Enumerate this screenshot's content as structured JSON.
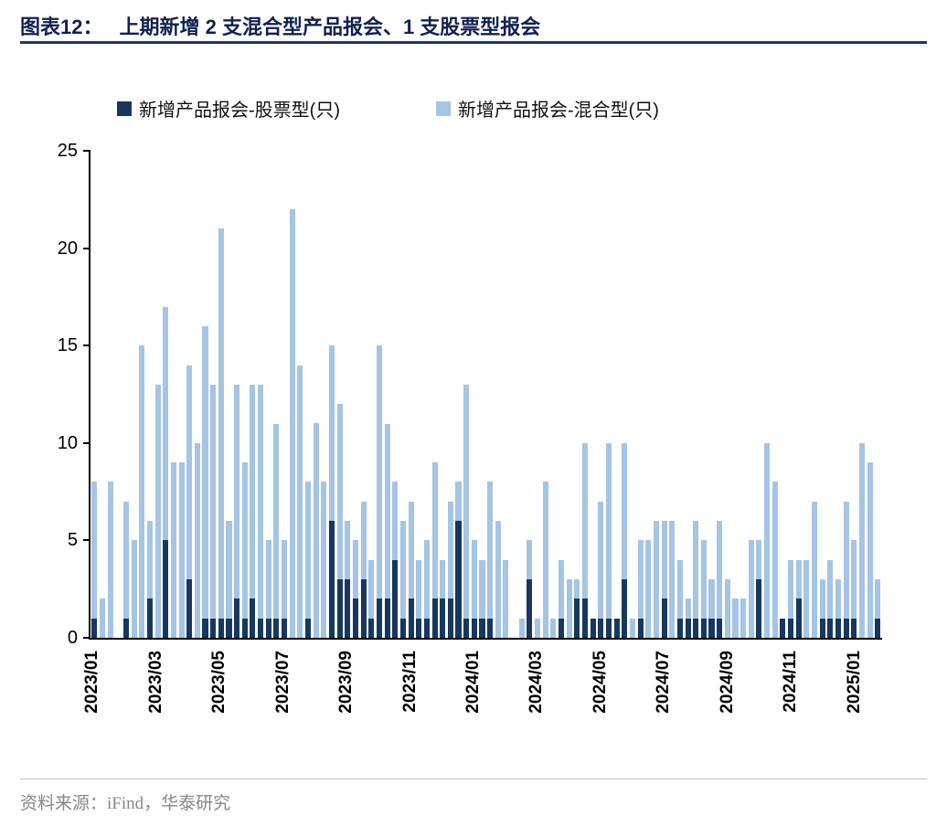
{
  "page": {
    "title_label": "图表12：",
    "title_text": "上期新增 2 支混合型产品报会、1 支股票型报会",
    "source": "资料来源：iFind，华泰研究"
  },
  "colors": {
    "equity": "#17375e",
    "hybrid": "#a6c4e4",
    "title_line": "#1f3864",
    "axis": "#000000",
    "source_text": "#85878a"
  },
  "legend": [
    {
      "label": "新增产品报会-股票型(只)",
      "color": "#17375e"
    },
    {
      "label": "新增产品报会-混合型(只)",
      "color": "#a6c4e4"
    }
  ],
  "chart_data": {
    "type": "bar",
    "stacked": true,
    "title": "上期新增 2 支混合型产品报会、1 支股票型报会",
    "xlabel": "",
    "ylabel": "",
    "ylim": [
      0,
      25
    ],
    "yticks": [
      0,
      5,
      10,
      15,
      20,
      25
    ],
    "grid": false,
    "legend_position": "top",
    "series_names": [
      "新增产品报会-股票型(只)",
      "新增产品报会-混合型(只)"
    ],
    "bar_value_order": [
      "equity",
      "hybrid"
    ],
    "xticks": [
      {
        "label": "2023/01",
        "index": 0
      },
      {
        "label": "2023/03",
        "index": 8
      },
      {
        "label": "2023/05",
        "index": 16
      },
      {
        "label": "2023/07",
        "index": 24
      },
      {
        "label": "2023/09",
        "index": 32
      },
      {
        "label": "2023/11",
        "index": 40
      },
      {
        "label": "2024/01",
        "index": 48
      },
      {
        "label": "2024/03",
        "index": 56
      },
      {
        "label": "2024/05",
        "index": 64
      },
      {
        "label": "2024/07",
        "index": 72
      },
      {
        "label": "2024/09",
        "index": 80
      },
      {
        "label": "2024/11",
        "index": 88
      },
      {
        "label": "2025/01",
        "index": 96
      }
    ],
    "bars": [
      [
        1,
        7
      ],
      [
        0,
        2
      ],
      [
        0,
        8
      ],
      [
        0,
        0
      ],
      [
        1,
        6
      ],
      [
        0,
        5
      ],
      [
        0,
        15
      ],
      [
        2,
        4
      ],
      [
        0,
        13
      ],
      [
        5,
        12
      ],
      [
        0,
        9
      ],
      [
        0,
        9
      ],
      [
        3,
        11
      ],
      [
        0,
        10
      ],
      [
        1,
        15
      ],
      [
        1,
        12
      ],
      [
        1,
        20
      ],
      [
        1,
        5
      ],
      [
        2,
        11
      ],
      [
        1,
        8
      ],
      [
        2,
        11
      ],
      [
        1,
        12
      ],
      [
        1,
        4
      ],
      [
        1,
        10
      ],
      [
        1,
        4
      ],
      [
        0,
        22
      ],
      [
        0,
        14
      ],
      [
        1,
        7
      ],
      [
        0,
        11
      ],
      [
        0,
        8
      ],
      [
        6,
        9
      ],
      [
        3,
        9
      ],
      [
        3,
        3
      ],
      [
        2,
        3
      ],
      [
        3,
        4
      ],
      [
        1,
        3
      ],
      [
        2,
        13
      ],
      [
        2,
        9
      ],
      [
        4,
        4
      ],
      [
        1,
        5
      ],
      [
        2,
        5
      ],
      [
        1,
        3
      ],
      [
        1,
        4
      ],
      [
        2,
        7
      ],
      [
        2,
        2
      ],
      [
        2,
        5
      ],
      [
        6,
        2
      ],
      [
        1,
        12
      ],
      [
        1,
        4
      ],
      [
        1,
        3
      ],
      [
        1,
        7
      ],
      [
        0,
        6
      ],
      [
        0,
        4
      ],
      [
        0,
        0
      ],
      [
        0,
        1
      ],
      [
        3,
        2
      ],
      [
        0,
        1
      ],
      [
        0,
        8
      ],
      [
        0,
        1
      ],
      [
        1,
        3
      ],
      [
        0,
        3
      ],
      [
        2,
        1
      ],
      [
        2,
        8
      ],
      [
        1,
        0
      ],
      [
        1,
        6
      ],
      [
        1,
        9
      ],
      [
        1,
        0
      ],
      [
        3,
        7
      ],
      [
        0,
        1
      ],
      [
        1,
        4
      ],
      [
        0,
        5
      ],
      [
        0,
        6
      ],
      [
        2,
        4
      ],
      [
        0,
        6
      ],
      [
        1,
        3
      ],
      [
        1,
        1
      ],
      [
        1,
        5
      ],
      [
        1,
        4
      ],
      [
        1,
        2
      ],
      [
        1,
        5
      ],
      [
        0,
        3
      ],
      [
        0,
        2
      ],
      [
        0,
        2
      ],
      [
        0,
        5
      ],
      [
        3,
        2
      ],
      [
        0,
        10
      ],
      [
        0,
        8
      ],
      [
        1,
        0
      ],
      [
        1,
        3
      ],
      [
        2,
        2
      ],
      [
        0,
        4
      ],
      [
        0,
        7
      ],
      [
        1,
        2
      ],
      [
        1,
        3
      ],
      [
        1,
        2
      ],
      [
        1,
        6
      ],
      [
        1,
        4
      ],
      [
        0,
        10
      ],
      [
        0,
        9
      ],
      [
        1,
        2
      ]
    ]
  }
}
